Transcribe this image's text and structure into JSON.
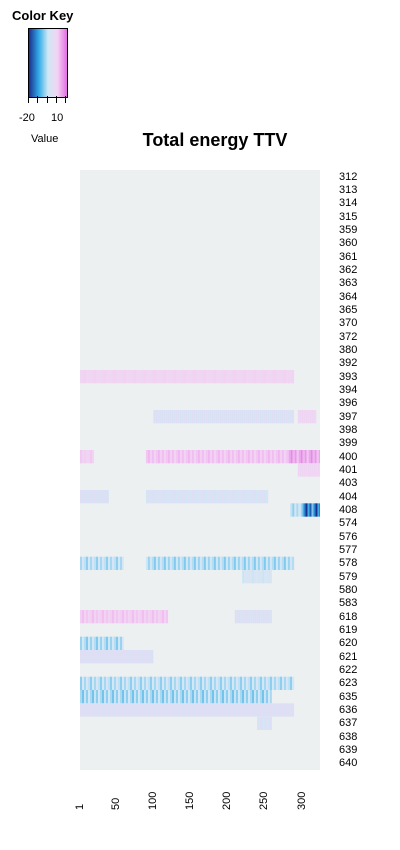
{
  "chart_data": {
    "type": "heatmap",
    "title": "Total energy TTV",
    "color_key": {
      "title": "Color Key",
      "label": "Value",
      "ticks": [
        "-20",
        "10"
      ],
      "range": [
        -30,
        15
      ],
      "colors": [
        "#1c2f8f",
        "#2fa8e6",
        "#cfe8f5",
        "#f3d3f3",
        "#e46ee4"
      ]
    },
    "x_tick_labels": [
      "1",
      "50",
      "100",
      "150",
      "200",
      "250",
      "300"
    ],
    "x_tick_values": [
      1,
      50,
      100,
      150,
      200,
      250,
      300
    ],
    "x_range": [
      1,
      325
    ],
    "rows": [
      "312",
      "313",
      "314",
      "315",
      "359",
      "360",
      "361",
      "362",
      "363",
      "364",
      "365",
      "370",
      "372",
      "380",
      "392",
      "393",
      "394",
      "396",
      "397",
      "398",
      "399",
      "400",
      "401",
      "403",
      "404",
      "408",
      "574",
      "576",
      "577",
      "578",
      "579",
      "580",
      "583",
      "618",
      "619",
      "620",
      "621",
      "622",
      "623",
      "635",
      "636",
      "637",
      "638",
      "639",
      "640"
    ],
    "background_value": 0,
    "segments": [
      {
        "row": "393",
        "from": 1,
        "to": 290,
        "value": 4
      },
      {
        "row": "397",
        "from": 100,
        "to": 290,
        "value": -5
      },
      {
        "row": "397",
        "from": 295,
        "to": 320,
        "value": 3
      },
      {
        "row": "400",
        "from": 1,
        "to": 20,
        "value": 5
      },
      {
        "row": "400",
        "from": 90,
        "to": 280,
        "value": 7
      },
      {
        "row": "400",
        "from": 280,
        "to": 325,
        "value": 12
      },
      {
        "row": "401",
        "from": 295,
        "to": 325,
        "value": 3
      },
      {
        "row": "404",
        "from": 1,
        "to": 40,
        "value": -5
      },
      {
        "row": "404",
        "from": 90,
        "to": 255,
        "value": -6
      },
      {
        "row": "408",
        "from": 285,
        "to": 300,
        "value": -12
      },
      {
        "row": "408",
        "from": 300,
        "to": 325,
        "value": -30
      },
      {
        "row": "578",
        "from": 1,
        "to": 60,
        "value": -12
      },
      {
        "row": "578",
        "from": 90,
        "to": 290,
        "value": -13
      },
      {
        "row": "579",
        "from": 220,
        "to": 260,
        "value": -8
      },
      {
        "row": "618",
        "from": 1,
        "to": 120,
        "value": 6
      },
      {
        "row": "618",
        "from": 210,
        "to": 260,
        "value": -5
      },
      {
        "row": "620",
        "from": 1,
        "to": 60,
        "value": -13
      },
      {
        "row": "621",
        "from": 1,
        "to": 100,
        "value": -4
      },
      {
        "row": "623",
        "from": 1,
        "to": 290,
        "value": -12
      },
      {
        "row": "635",
        "from": 1,
        "to": 260,
        "value": -14
      },
      {
        "row": "636",
        "from": 1,
        "to": 290,
        "value": -4
      },
      {
        "row": "637",
        "from": 240,
        "to": 260,
        "value": -6
      }
    ]
  }
}
